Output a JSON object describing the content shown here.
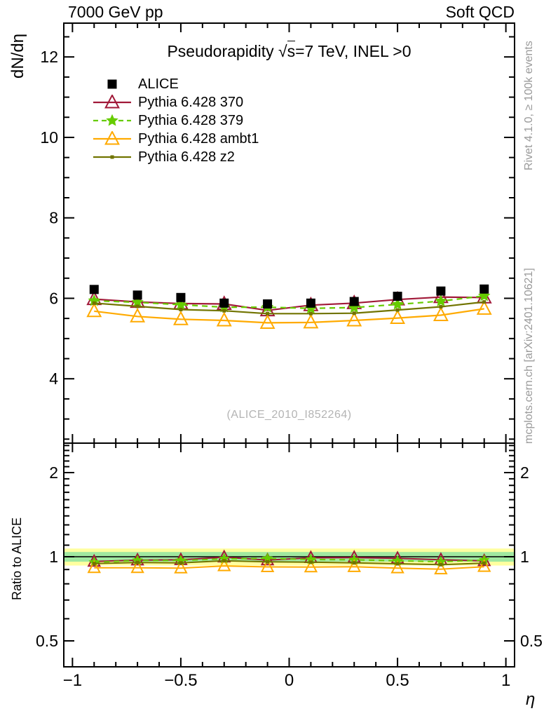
{
  "header": {
    "left": "7000 GeV pp",
    "right": "Soft QCD"
  },
  "titles": {
    "prefix": "Pseudorapidity ",
    "sqrt_symbol": "√",
    "sqrt_arg": "s",
    "suffix": "=7 TeV, INEL >0",
    "watermark": "(ALICE_2010_I852264)"
  },
  "axes": {
    "y_label_main": "dN/dη",
    "y_label_ratio": "Ratio to ALICE",
    "x_label": "η",
    "main_yticks": [
      {
        "v": 4,
        "label": "4"
      },
      {
        "v": 6,
        "label": "6"
      },
      {
        "v": 8,
        "label": "8"
      },
      {
        "v": 10,
        "label": "10"
      },
      {
        "v": 12,
        "label": "12"
      }
    ],
    "ratio_yticks": [
      {
        "v": 0.5,
        "label": "0.5"
      },
      {
        "v": 1,
        "label": "1"
      },
      {
        "v": 2,
        "label": "2"
      }
    ],
    "xticks": [
      {
        "v": -1,
        "label": "−1"
      },
      {
        "v": -0.5,
        "label": "−0.5"
      },
      {
        "v": 0,
        "label": "0"
      },
      {
        "v": 0.5,
        "label": "0.5"
      },
      {
        "v": 1,
        "label": "1"
      }
    ]
  },
  "side_notes": {
    "top": "Rivet 4.1.0, ≥ 100k events",
    "bottom": "mcplots.cern.ch [arXiv:2401.10621]"
  },
  "chart_data": {
    "type": "line",
    "title": "Pseudorapidity √s=7 TeV, INEL >0",
    "xlabel": "η",
    "ylabel": "dN/dη",
    "ratio_ylabel": "Ratio to ALICE",
    "xlim": [
      -1.04,
      1.04
    ],
    "ylim_main": [
      2.4,
      12.84
    ],
    "ylim_ratio": [
      0.4,
      2.55
    ],
    "ratio_scale": "log2",
    "grid": false,
    "legend_position": "top-left",
    "x": [
      -0.9,
      -0.7,
      -0.5,
      -0.3,
      -0.1,
      0.1,
      0.3,
      0.5,
      0.7,
      0.9
    ],
    "series": [
      {
        "name": "ALICE",
        "role": "reference-data",
        "marker": "filled-square",
        "line": "none",
        "color": "#000000",
        "values": [
          6.22,
          6.08,
          6.02,
          5.88,
          5.86,
          5.88,
          5.92,
          6.05,
          6.18,
          6.23
        ]
      },
      {
        "name": "Pythia 6.428 370",
        "role": "mc",
        "marker": "open-triangle",
        "line": "solid",
        "color": "#a11938",
        "values": [
          5.98,
          5.91,
          5.87,
          5.86,
          5.7,
          5.83,
          5.88,
          5.97,
          6.03,
          6.02
        ]
      },
      {
        "name": "Pythia 6.428 379",
        "role": "mc",
        "marker": "star",
        "line": "dashed",
        "color": "#66cc00",
        "values": [
          5.94,
          5.9,
          5.84,
          5.78,
          5.78,
          5.75,
          5.77,
          5.85,
          5.93,
          6.06
        ]
      },
      {
        "name": "Pythia 6.428 ambt1",
        "role": "mc",
        "marker": "open-triangle",
        "line": "solid",
        "color": "#ffaa00",
        "values": [
          5.68,
          5.55,
          5.48,
          5.45,
          5.39,
          5.4,
          5.45,
          5.51,
          5.58,
          5.74
        ]
      },
      {
        "name": "Pythia 6.428 z2",
        "role": "mc",
        "marker": "small-square",
        "line": "solid",
        "color": "#717400",
        "values": [
          5.88,
          5.8,
          5.72,
          5.69,
          5.62,
          5.62,
          5.63,
          5.71,
          5.79,
          5.91
        ]
      }
    ],
    "ratio_reference": "ALICE",
    "ratio_bands": [
      {
        "name": "data-uncertainty-outer",
        "color": "#ffffa0",
        "half_width": 0.07
      },
      {
        "name": "data-uncertainty-inner",
        "color": "#a0e8a0",
        "half_width": 0.04
      }
    ],
    "ratio_reference_line": 1.0
  }
}
